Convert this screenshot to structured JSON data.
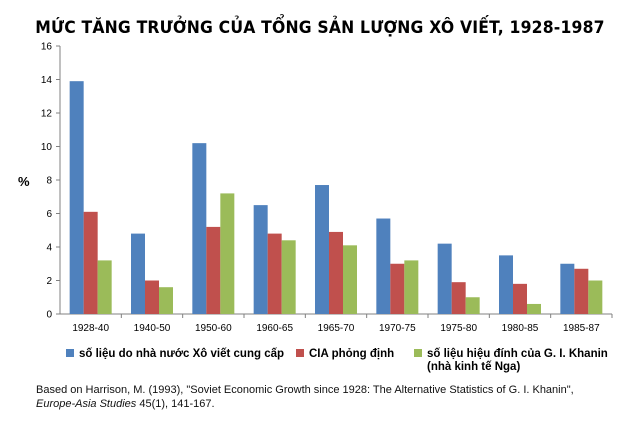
{
  "chart_data": {
    "type": "bar",
    "title": "MỨC TĂNG TRƯỞNG CỦA TỔNG SẢN LƯỢNG XÔ VIẾT, 1928-1987",
    "xlabel": "",
    "ylabel": "%",
    "ylim": [
      0,
      16
    ],
    "yticks": [
      "0",
      "2",
      "4",
      "6",
      "8",
      "10",
      "12",
      "14",
      "16"
    ],
    "grid": false,
    "legend_position": "bottom",
    "categories": [
      "1928-40",
      "1940-50",
      "1950-60",
      "1960-65",
      "1965-70",
      "1970-75",
      "1975-80",
      "1980-85",
      "1985-87"
    ],
    "series": [
      {
        "name": "số liệu do nhà nước Xô viết cung cấp",
        "color": "#4F81BD",
        "values": [
          13.9,
          4.8,
          10.2,
          6.5,
          7.7,
          5.7,
          4.2,
          3.5,
          3.0
        ]
      },
      {
        "name": "CIA phỏng định",
        "color": "#C0504D",
        "values": [
          6.1,
          2.0,
          5.2,
          4.8,
          4.9,
          3.0,
          1.9,
          1.8,
          2.7
        ]
      },
      {
        "name": "số liệu hiệu đính của G. I. Khanin",
        "name_line2": "(nhà kinh tế Nga)",
        "color": "#9BBB59",
        "values": [
          3.2,
          1.6,
          7.2,
          4.4,
          4.1,
          3.2,
          1.0,
          0.6,
          2.0
        ]
      }
    ]
  },
  "source": {
    "line1": "Based on Harrison, M. (1993), \"Soviet Economic Growth since 1928: The Alternative Statistics of G. I. Khanin\",",
    "journal": "Europe-Asia Studies",
    "rest": " 45(1),  141-167."
  }
}
